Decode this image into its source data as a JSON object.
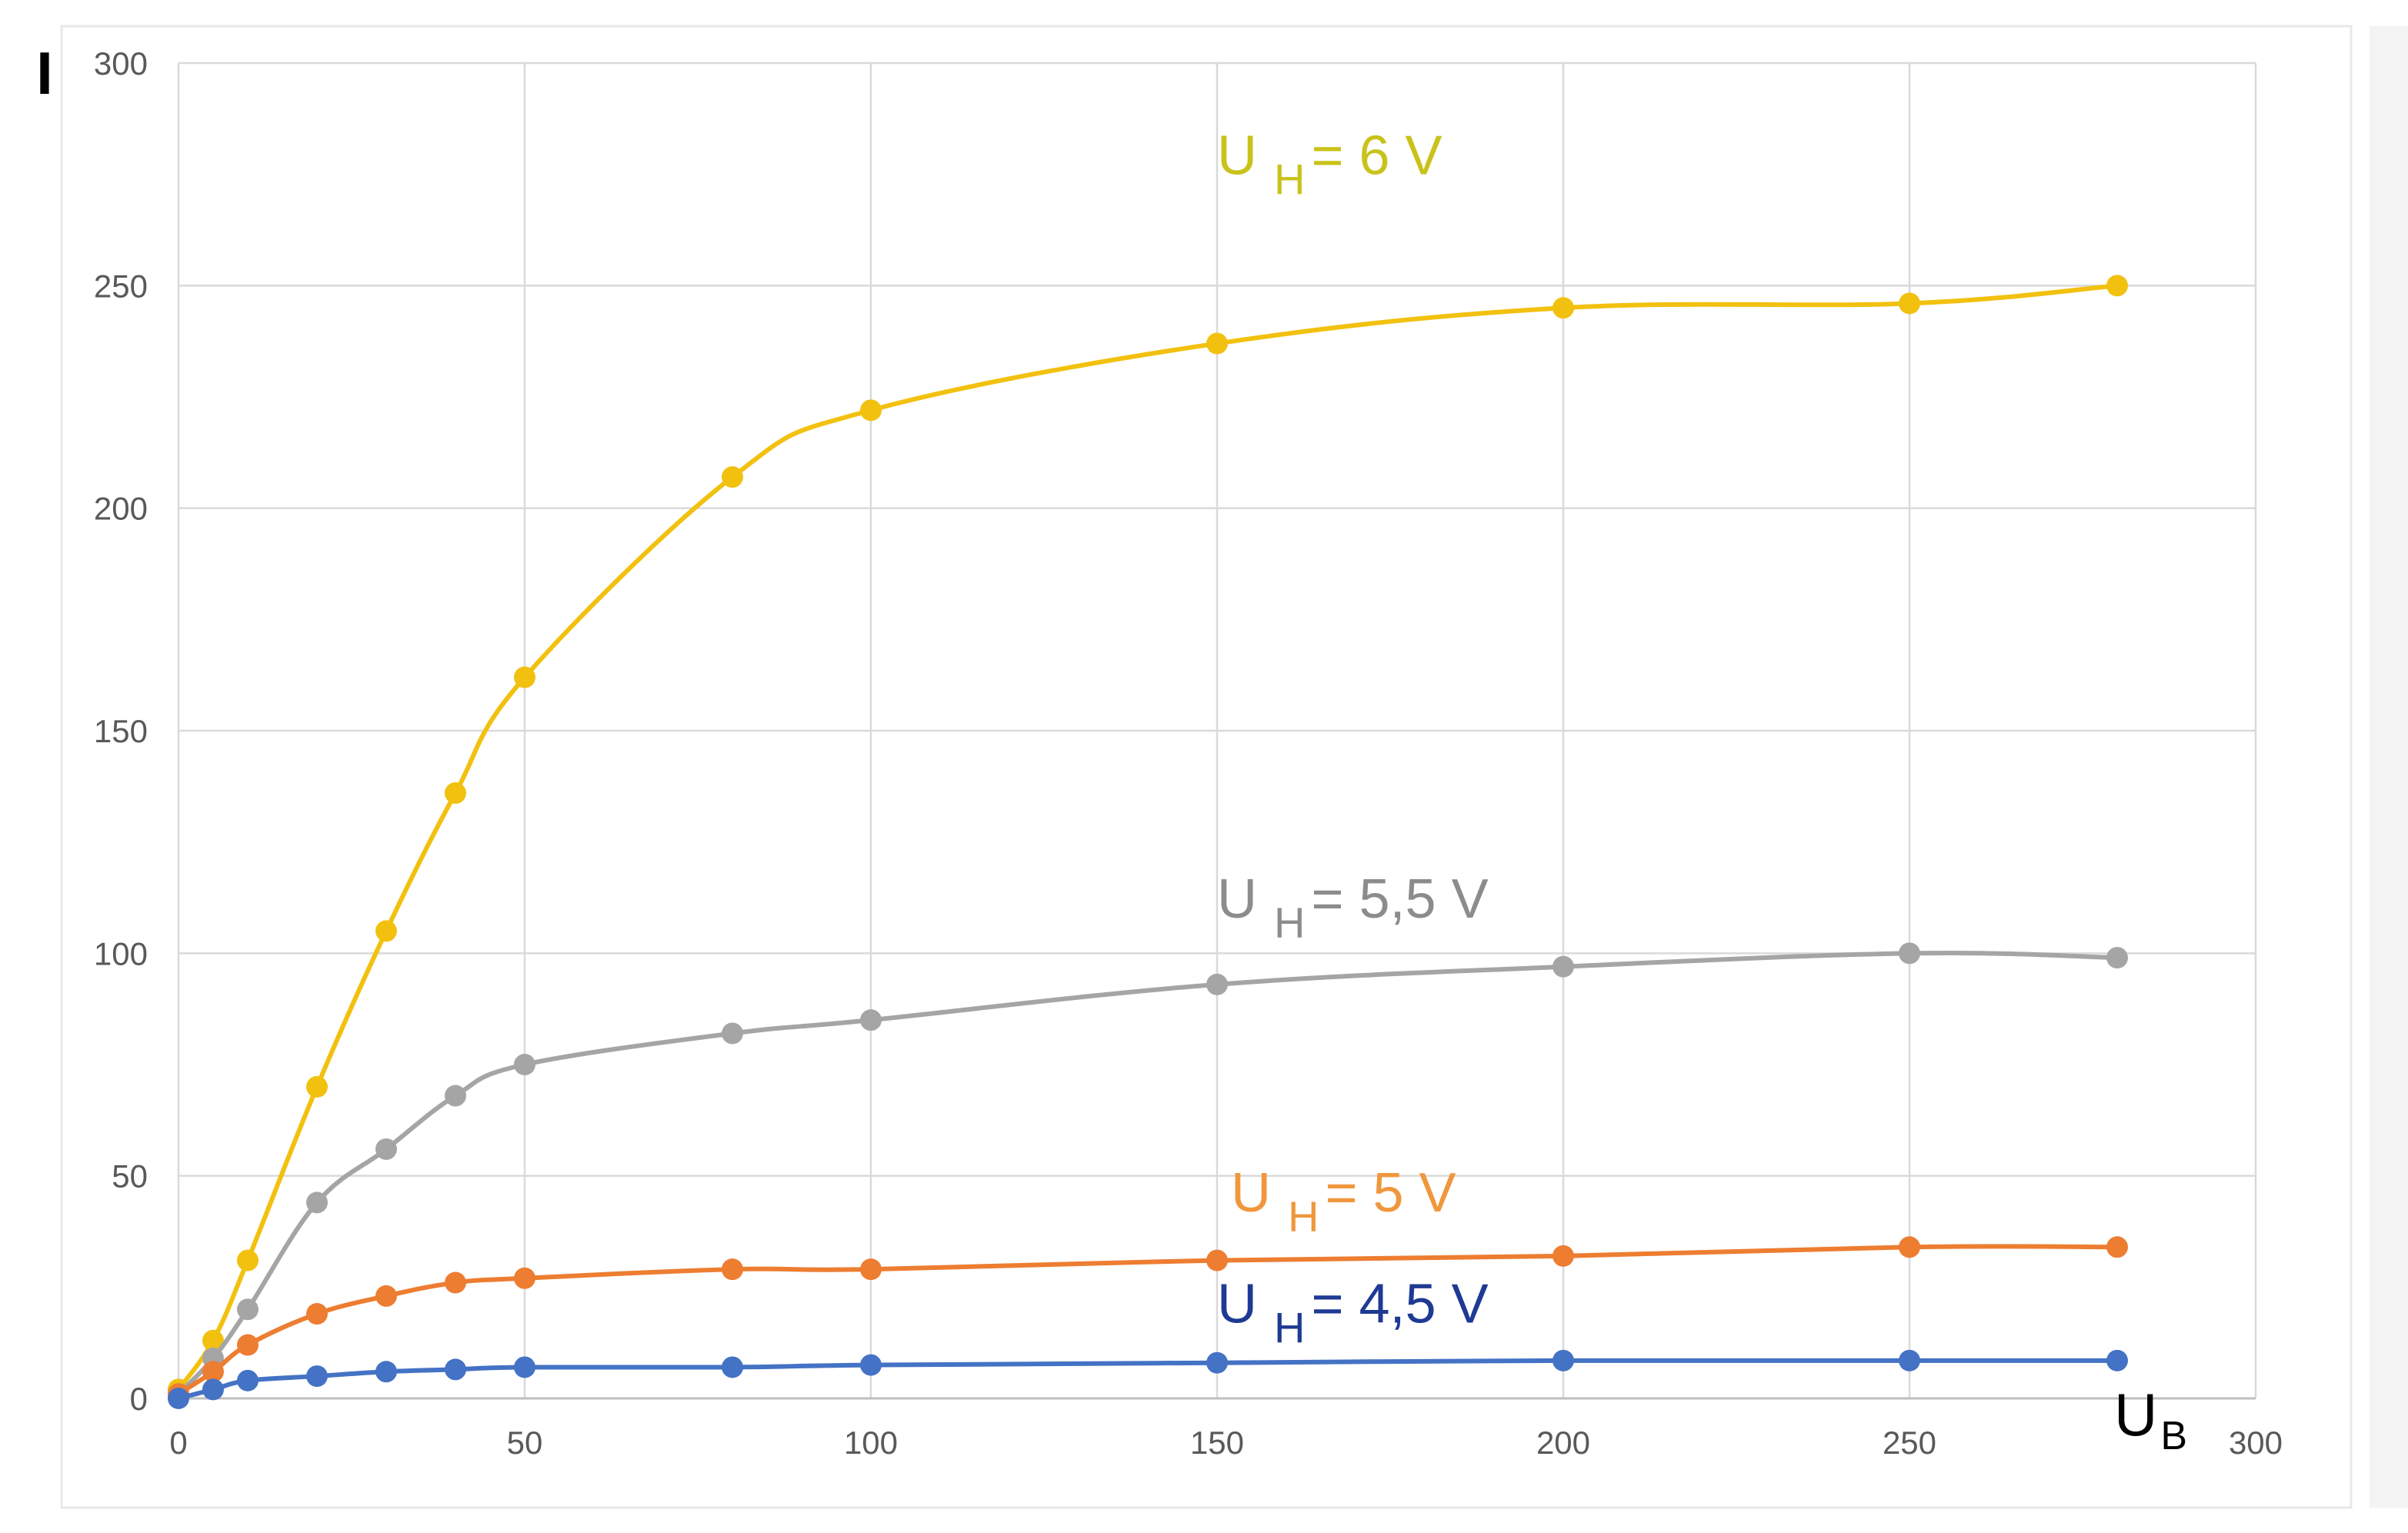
{
  "chart_data": {
    "type": "line",
    "title": "",
    "xlabel": "U",
    "xlabel_subscript": "B",
    "ylabel": "I",
    "xlim": [
      0,
      300
    ],
    "ylim": [
      0,
      300
    ],
    "x_ticks": [
      0,
      50,
      100,
      150,
      200,
      250,
      300
    ],
    "y_ticks": [
      0,
      50,
      100,
      150,
      200,
      250,
      300
    ],
    "grid": true,
    "x": [
      0,
      5,
      10,
      20,
      30,
      40,
      50,
      80,
      100,
      150,
      200,
      250,
      280
    ],
    "series": [
      {
        "label_main": "U",
        "label_sub": "H",
        "label_rest": "= 6 V",
        "color": "#F2C10F",
        "label_color": "#C9C21A",
        "values": [
          2,
          13,
          31,
          70,
          105,
          136,
          162,
          207,
          222,
          237,
          245,
          246,
          250
        ]
      },
      {
        "label_main": "U",
        "label_sub": "H",
        "label_rest": "= 5,5 V",
        "color": "#A5A5A5",
        "label_color": "#8C8C8C",
        "values": [
          1,
          9,
          20,
          44,
          56,
          68,
          75,
          82,
          85,
          93,
          97,
          100,
          99
        ]
      },
      {
        "label_main": "U",
        "label_sub": "H",
        "label_rest": "= 5 V",
        "color": "#ED7D31",
        "label_color": "#F0973D",
        "values": [
          1,
          6,
          12,
          19,
          23,
          26,
          27,
          29,
          29,
          31,
          32,
          34,
          34
        ]
      },
      {
        "label_main": "U",
        "label_sub": "H",
        "label_rest": "= 4,5 V",
        "color": "#4472C4",
        "label_color": "#1F3A93",
        "values": [
          0,
          2,
          4,
          5,
          6,
          6.5,
          7,
          7,
          7.5,
          8,
          8.5,
          8.5,
          8.5
        ]
      }
    ]
  }
}
